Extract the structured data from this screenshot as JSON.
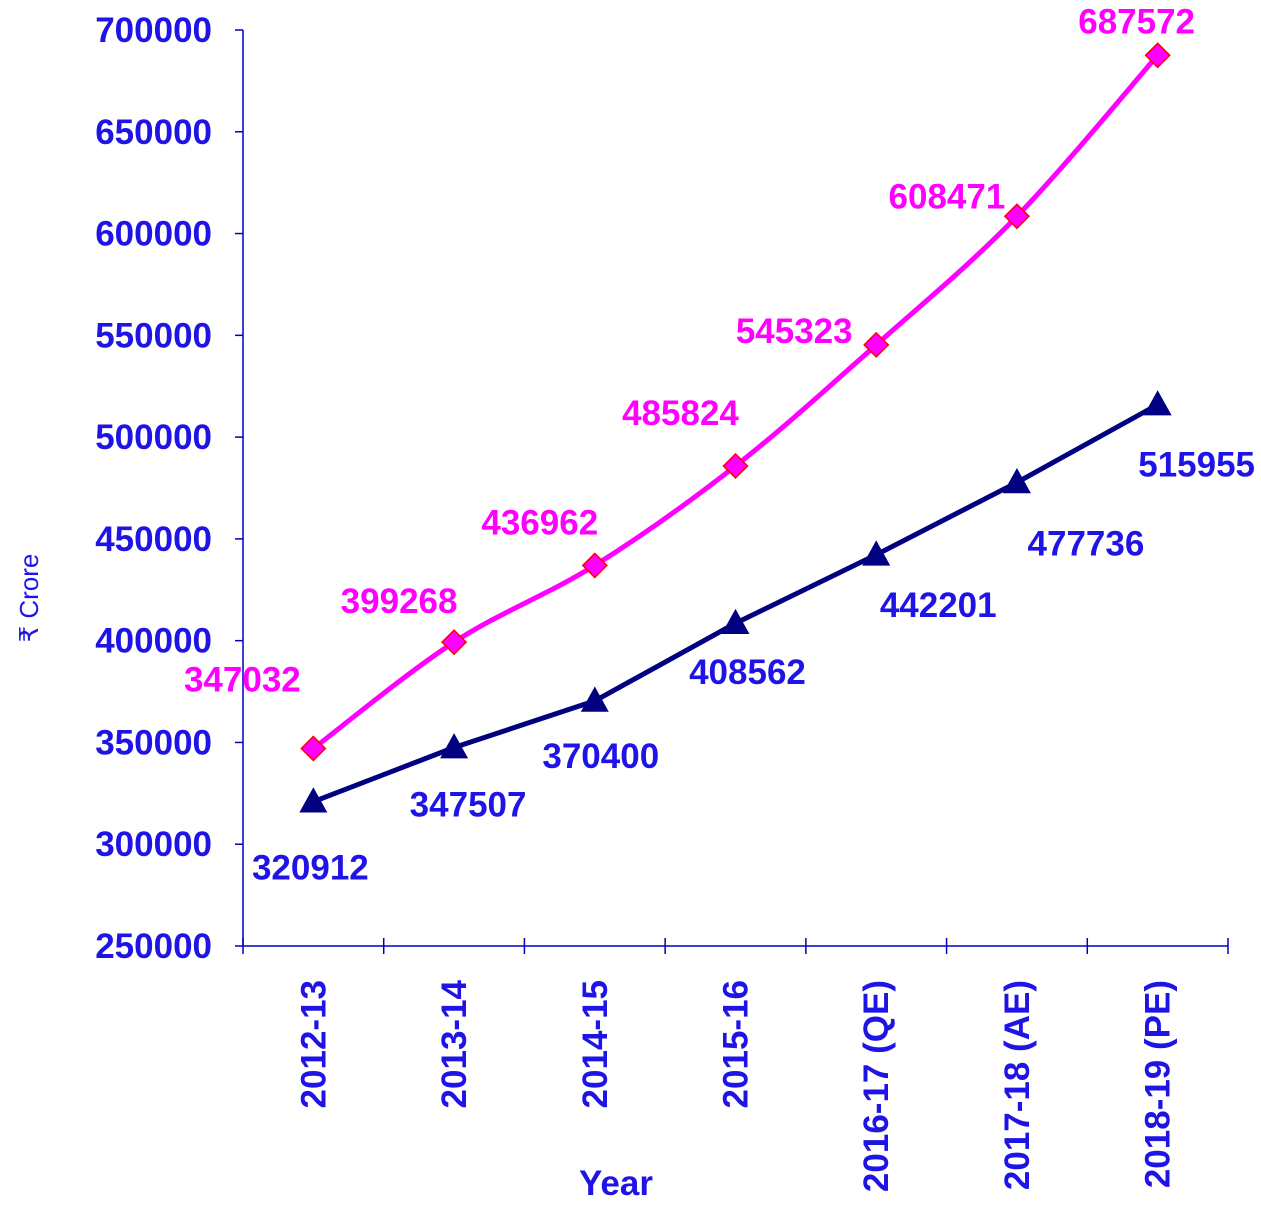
{
  "chart_data": {
    "type": "line",
    "title": "",
    "xlabel": "Year",
    "ylabel": "₹ Crore",
    "categories": [
      "2012-13",
      "2013-14",
      "2014-15",
      "2015-16",
      "2016-17 (QE)",
      "2017-18 (AE)",
      "2018-19 (PE)"
    ],
    "ylim": [
      250000,
      700000
    ],
    "yticks": [
      250000,
      300000,
      350000,
      400000,
      450000,
      500000,
      550000,
      600000,
      650000,
      700000
    ],
    "grid": false,
    "legend": "none",
    "series": [
      {
        "values": [
          347032,
          399268,
          436962,
          485824,
          545323,
          608471,
          687572
        ],
        "labels": [
          "347032",
          "399268",
          "436962",
          "485824",
          "545323",
          "608471",
          "687572"
        ],
        "color": "#ff00ff",
        "marker": "diamond",
        "marker_color": "#ff00ff",
        "marker_edge": "#ff0000"
      },
      {
        "values": [
          320912,
          347507,
          370400,
          408562,
          442201,
          477736,
          515955
        ],
        "labels": [
          "320912",
          "347507",
          "370400",
          "408562",
          "442201",
          "477736",
          "515955"
        ],
        "color": "#000080",
        "marker": "triangle",
        "marker_color": "#000080",
        "label_color": "#1f14e6"
      }
    ],
    "axis_color": "#0000c0"
  }
}
